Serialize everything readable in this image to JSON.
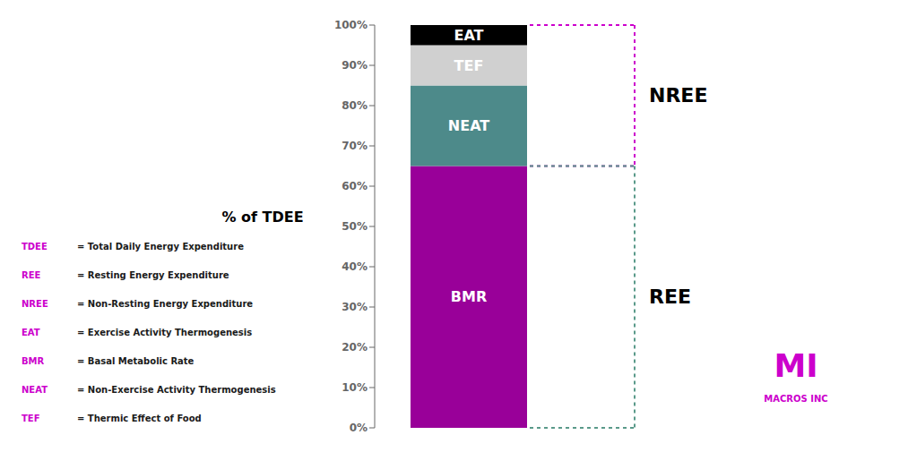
{
  "chart_data": {
    "type": "bar",
    "stacked": true,
    "grid": false,
    "tick_labels": "y",
    "categories": [
      null
    ],
    "series": [
      {
        "name": "BMR",
        "color": "#990099",
        "values": [
          65
        ]
      },
      {
        "name": "NEAT",
        "color": "#4d8a8a",
        "values": [
          20
        ]
      },
      {
        "name": "TEF",
        "color": "#d0d0d0",
        "values": [
          10
        ]
      },
      {
        "name": "EAT",
        "color": "#000000",
        "values": [
          5
        ]
      }
    ],
    "ylabel": "% of TDEE",
    "ylim": [
      0,
      100
    ],
    "yticks": [
      {
        "value": 0,
        "label": "0%"
      },
      {
        "value": 10,
        "label": "10%"
      },
      {
        "value": 20,
        "label": "20%"
      },
      {
        "value": 30,
        "label": "30%"
      },
      {
        "value": 40,
        "label": "40%"
      },
      {
        "value": 50,
        "label": "50%"
      },
      {
        "value": 60,
        "label": "60%"
      },
      {
        "value": 70,
        "label": "70%"
      },
      {
        "value": 80,
        "label": "80%"
      },
      {
        "value": 90,
        "label": "90%"
      },
      {
        "value": 100,
        "label": "100%"
      }
    ],
    "brackets": [
      {
        "label": "NREE",
        "range": [
          65,
          100
        ],
        "color": "#cc00cc"
      },
      {
        "label": "REE",
        "range": [
          0,
          65
        ],
        "color": "#5a9a8a"
      }
    ],
    "definitions": {
      "abbr_color": "#cc00cc",
      "text_color": "#1a1a1a",
      "items": [
        {
          "abbr": "TDEE",
          "full": "= Total Daily Energy Expenditure"
        },
        {
          "abbr": "REE",
          "full": "= Resting Energy Expenditure"
        },
        {
          "abbr": "NREE",
          "full": "= Non-Resting Energy Expenditure"
        },
        {
          "abbr": "EAT",
          "full": "= Exercise Activity Thermogenesis"
        },
        {
          "abbr": "BMR",
          "full": "= Basal Metabolic Rate"
        },
        {
          "abbr": "NEAT",
          "full": "= Non-Exercise Activity Thermogenesis"
        },
        {
          "abbr": "TEF",
          "full": "= Thermic Effect of Food"
        }
      ]
    },
    "logo": {
      "text": "MI",
      "subtext": "MACROS INC",
      "color": "#cc00cc"
    }
  }
}
